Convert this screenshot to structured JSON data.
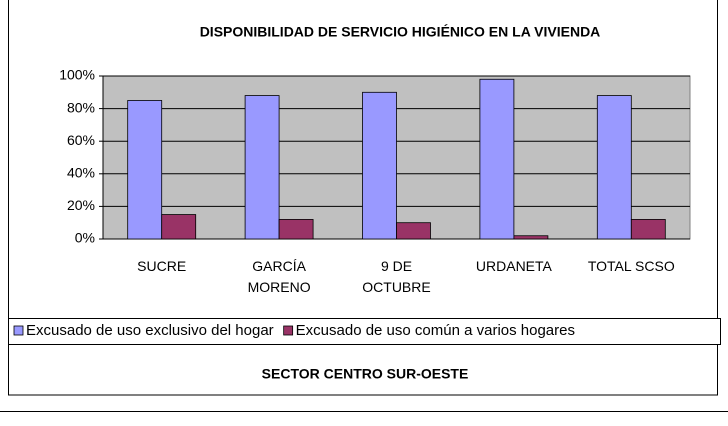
{
  "chart_data": {
    "type": "bar",
    "title": "DISPONIBILIDAD DE SERVICIO HIGIÉNICO EN LA VIVIENDA",
    "x_label": "SECTOR CENTRO SUR-OESTE",
    "categories": [
      "SUCRE",
      "GARCÍA MORENO",
      "9 DE OCTUBRE",
      "URDANETA",
      "TOTAL SCSO"
    ],
    "series": [
      {
        "name": "Excusado de uso exclusivo del hogar",
        "color": "#9999ff",
        "values": [
          85,
          88,
          90,
          98,
          88
        ]
      },
      {
        "name": "Excusado de uso común a varios hogares",
        "color": "#993366",
        "values": [
          15,
          12,
          10,
          2,
          12
        ]
      }
    ],
    "ylim": [
      0,
      100
    ],
    "yticks": [
      {
        "value": 0,
        "label": "0%"
      },
      {
        "value": 20,
        "label": "20%"
      },
      {
        "value": 40,
        "label": "40%"
      },
      {
        "value": 60,
        "label": "60%"
      },
      {
        "value": 80,
        "label": "80%"
      },
      {
        "value": 100,
        "label": "100%"
      }
    ],
    "grid": true,
    "legend": "bottom",
    "plot_background": "#c0c0c0"
  }
}
